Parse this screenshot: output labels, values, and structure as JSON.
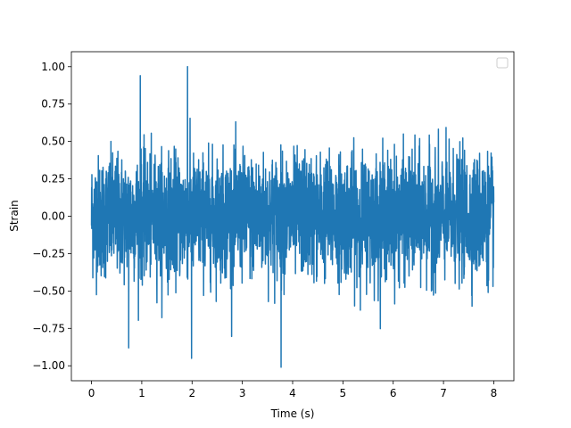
{
  "chart_data": {
    "type": "line",
    "title": "",
    "xlabel": "Time (s)",
    "ylabel": "Strain",
    "xlim": [
      -0.4,
      8.4
    ],
    "ylim": [
      -1.1,
      1.1
    ],
    "x_ticks": [
      0,
      1,
      2,
      3,
      4,
      5,
      6,
      7,
      8
    ],
    "x_tick_labels": [
      "0",
      "1",
      "2",
      "3",
      "4",
      "5",
      "6",
      "7",
      "8"
    ],
    "y_ticks": [
      -1.0,
      -0.75,
      -0.5,
      -0.25,
      0.0,
      0.25,
      0.5,
      0.75,
      1.0
    ],
    "y_tick_labels": [
      "−1.00",
      "−0.75",
      "−0.50",
      "−0.25",
      "0.00",
      "0.25",
      "0.50",
      "0.75",
      "1.00"
    ],
    "grid": false,
    "legend": {
      "placement": "upper-right",
      "entries": []
    },
    "series": [
      {
        "color": "#1f77b4",
        "x_start": 0,
        "x_end": 8,
        "distribution": "random noise, roughly Gaussian",
        "mean": 0.0,
        "std": 0.2,
        "min": -1.01,
        "max": 1.0,
        "envelope_x": [
          0,
          0.5,
          1,
          1.5,
          2,
          2.5,
          3,
          3.5,
          4,
          4.5,
          5,
          5.5,
          6,
          6.5,
          7,
          7.5,
          8
        ],
        "envelope_upper": [
          0.72,
          0.7,
          0.94,
          0.9,
          1.0,
          0.68,
          0.82,
          0.7,
          0.72,
          0.62,
          0.8,
          0.72,
          0.8,
          0.78,
          0.85,
          0.62,
          0.7
        ],
        "envelope_lower": [
          -0.75,
          -0.68,
          -0.88,
          -0.75,
          -0.95,
          -0.85,
          -0.85,
          -0.9,
          -1.01,
          -0.8,
          -0.78,
          -0.8,
          -0.82,
          -0.78,
          -0.88,
          -0.72,
          -0.6
        ],
        "notable_points": [
          {
            "x": 0.97,
            "y": 0.94
          },
          {
            "x": 1.91,
            "y": 1.0
          },
          {
            "x": 3.77,
            "y": -1.01
          },
          {
            "x": 1.99,
            "y": -0.95
          },
          {
            "x": 0.74,
            "y": -0.88
          }
        ]
      }
    ]
  }
}
